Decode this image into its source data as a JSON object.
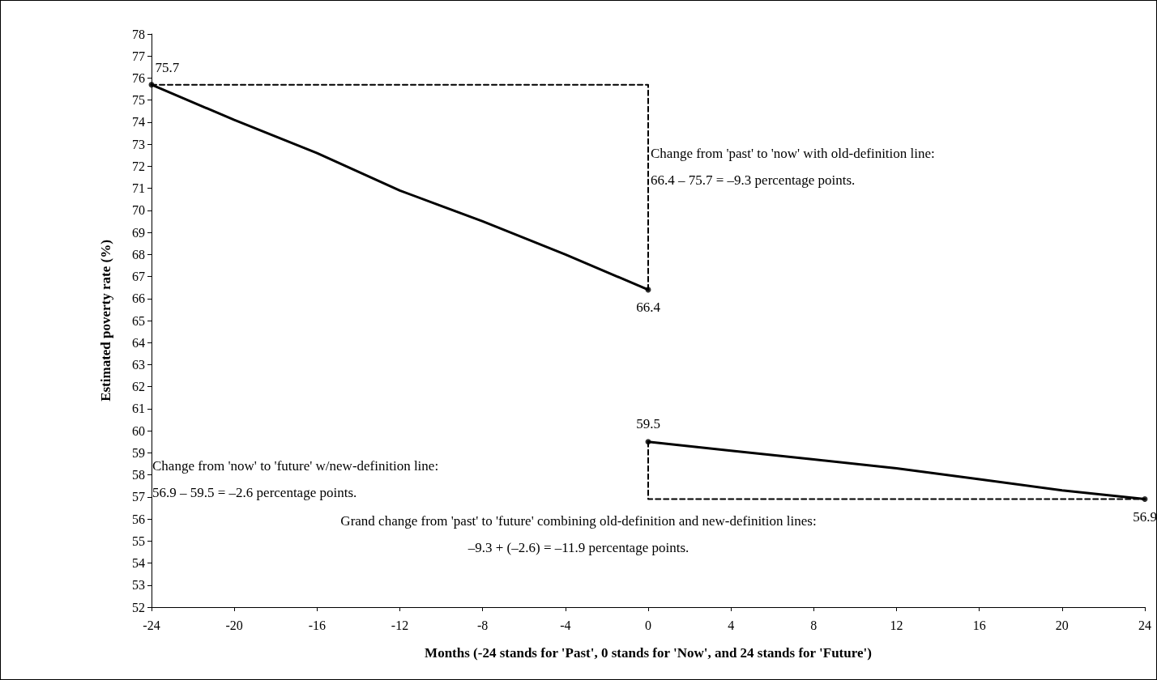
{
  "chart_data": {
    "type": "line",
    "xlabel": "Months (-24 stands for 'Past', 0 stands for 'Now', and 24 stands for 'Future')",
    "ylabel": "Estimated poverty rate (%)",
    "xlim": [
      -24,
      24
    ],
    "xticks": [
      -24,
      -20,
      -16,
      -12,
      -8,
      -4,
      0,
      4,
      8,
      12,
      16,
      20,
      24
    ],
    "ylim": [
      52,
      78
    ],
    "yticks": [
      52,
      53,
      54,
      55,
      56,
      57,
      58,
      59,
      60,
      61,
      62,
      63,
      64,
      65,
      66,
      67,
      68,
      69,
      70,
      71,
      72,
      73,
      74,
      75,
      76,
      77,
      78
    ],
    "grid": false,
    "marker": "none",
    "line_style": "solid",
    "series": [
      {
        "color": "#000000",
        "x": [
          -24,
          -20,
          -16,
          -12,
          -8,
          -4,
          0
        ],
        "values": [
          75.7,
          74.1,
          72.6,
          70.9,
          69.5,
          68.0,
          66.4
        ]
      },
      {
        "color": "#000000",
        "x": [
          0,
          4,
          8,
          12,
          16,
          20,
          24
        ],
        "values": [
          59.5,
          59.1,
          58.7,
          58.3,
          57.8,
          57.3,
          56.9
        ]
      },
      {
        "color": "#000000",
        "line_style": "dashed",
        "x": [
          -24,
          0,
          0
        ],
        "values": [
          75.7,
          75.7,
          66.4
        ]
      },
      {
        "color": "#000000",
        "line_style": "dashed",
        "x": [
          0,
          0,
          24
        ],
        "values": [
          59.5,
          56.9,
          56.9
        ]
      },
      {
        "type": "scatter",
        "marker": "circle",
        "color": "#000000",
        "x": [
          -24,
          0,
          0,
          24
        ],
        "values": [
          75.7,
          66.4,
          59.5,
          56.9
        ],
        "value_labels": [
          "75.7",
          "66.4",
          "59.5",
          "56.9"
        ]
      }
    ],
    "annotations": [
      "Change from 'past' to 'now' with old-definition line:\n66.4 – 75.7 = –9.3 percentage points.",
      "Change from 'now' to 'future' w/new-definition line:\n56.9 – 59.5 = –2.6 percentage points.",
      "Grand change from 'past' to 'future' combining old-definition and new-definition lines:\n–9.3 + (–2.6) = –11.9 percentage points."
    ]
  }
}
